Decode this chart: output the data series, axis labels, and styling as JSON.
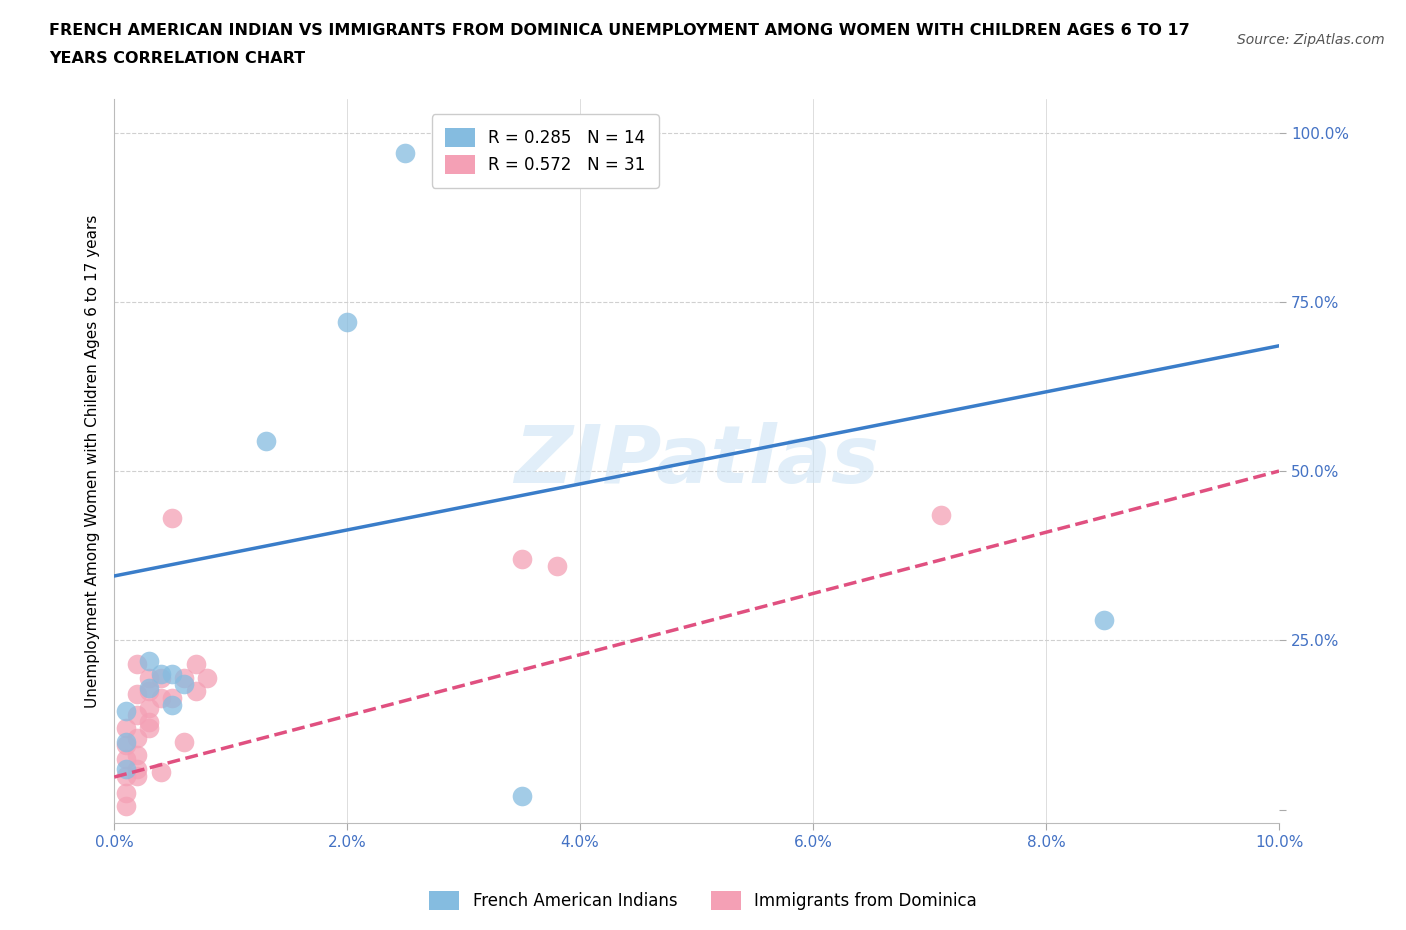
{
  "title_line1": "FRENCH AMERICAN INDIAN VS IMMIGRANTS FROM DOMINICA UNEMPLOYMENT AMONG WOMEN WITH CHILDREN AGES 6 TO 17",
  "title_line2": "YEARS CORRELATION CHART",
  "source": "Source: ZipAtlas.com",
  "ylabel": "Unemployment Among Women with Children Ages 6 to 17 years",
  "xlim": [
    0.0,
    0.1
  ],
  "ylim": [
    -0.02,
    1.05
  ],
  "xticks": [
    0.0,
    0.02,
    0.04,
    0.06,
    0.08,
    0.1
  ],
  "xtick_labels": [
    "0.0%",
    "2.0%",
    "4.0%",
    "6.0%",
    "8.0%",
    "10.0%"
  ],
  "yticks": [
    0.0,
    0.25,
    0.5,
    0.75,
    1.0
  ],
  "ytick_labels": [
    "",
    "25.0%",
    "50.0%",
    "75.0%",
    "100.0%"
  ],
  "blue_color": "#85bce0",
  "pink_color": "#f4a0b5",
  "blue_line_color": "#3a7dc9",
  "pink_line_color": "#e05080",
  "blue_R": 0.285,
  "blue_N": 14,
  "pink_R": 0.572,
  "pink_N": 31,
  "watermark": "ZIPatlas",
  "blue_scatter_x": [
    0.025,
    0.02,
    0.013,
    0.085,
    0.003,
    0.003,
    0.004,
    0.005,
    0.005,
    0.006,
    0.001,
    0.001,
    0.001,
    0.035
  ],
  "blue_scatter_y": [
    0.97,
    0.72,
    0.545,
    0.28,
    0.22,
    0.18,
    0.2,
    0.155,
    0.2,
    0.185,
    0.06,
    0.1,
    0.145,
    0.02
  ],
  "pink_scatter_x": [
    0.005,
    0.001,
    0.001,
    0.001,
    0.001,
    0.001,
    0.001,
    0.002,
    0.002,
    0.002,
    0.002,
    0.003,
    0.003,
    0.003,
    0.003,
    0.004,
    0.004,
    0.005,
    0.006,
    0.006,
    0.007,
    0.007,
    0.008,
    0.035,
    0.038,
    0.071,
    0.002,
    0.002,
    0.002,
    0.003,
    0.004
  ],
  "pink_scatter_y": [
    0.43,
    0.12,
    0.095,
    0.075,
    0.05,
    0.025,
    0.005,
    0.14,
    0.105,
    0.08,
    0.05,
    0.195,
    0.175,
    0.15,
    0.12,
    0.195,
    0.165,
    0.165,
    0.195,
    0.1,
    0.215,
    0.175,
    0.195,
    0.37,
    0.36,
    0.435,
    0.215,
    0.17,
    0.06,
    0.13,
    0.055
  ],
  "blue_line_x0": 0.0,
  "blue_line_y0": 0.345,
  "blue_line_x1": 0.1,
  "blue_line_y1": 0.685,
  "pink_line_x0": 0.0,
  "pink_line_y0": 0.048,
  "pink_line_x1": 0.1,
  "pink_line_y1": 0.5,
  "background_color": "#ffffff",
  "grid_color": "#d0d0d0",
  "tick_color_x": "#4472C4",
  "tick_color_y": "#4472C4"
}
